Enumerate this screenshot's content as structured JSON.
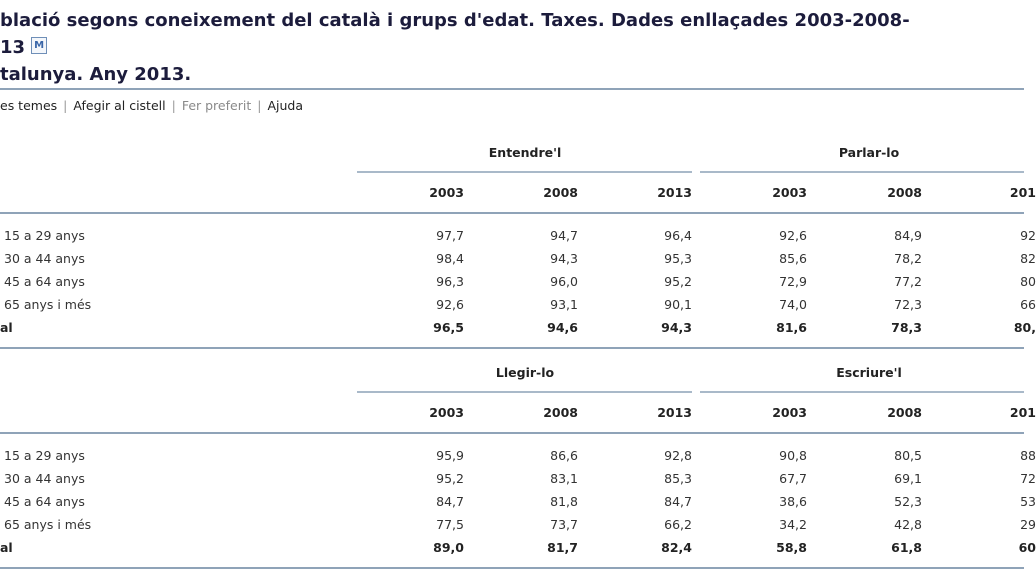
{
  "title": {
    "line1": "blació segons coneixement del català i grups d'edat. Taxes. Dades enllaçades 2003-2008-",
    "line2": "13",
    "line3": "talunya. Any 2013.",
    "metadata_icon": "M"
  },
  "links": [
    {
      "label": "es temes",
      "enabled": true
    },
    {
      "label": "Afegir al cistell",
      "enabled": true
    },
    {
      "label": "Fer preferit",
      "enabled": false
    },
    {
      "label": "Ajuda",
      "enabled": true
    }
  ],
  "row_labels": [
    "15 a 29 anys",
    "30 a 44 anys",
    "45 a 64 anys",
    "65 anys i més",
    "al"
  ],
  "tables": [
    {
      "groups": [
        "Entendre'l",
        "Parlar-lo"
      ],
      "years": [
        "2003",
        "2008",
        "2013",
        "2003",
        "2008",
        "201"
      ],
      "rows": [
        [
          "97,7",
          "94,7",
          "96,4",
          "92,6",
          "84,9",
          "92"
        ],
        [
          "98,4",
          "94,3",
          "95,3",
          "85,6",
          "78,2",
          "82"
        ],
        [
          "96,3",
          "96,0",
          "95,2",
          "72,9",
          "77,2",
          "80"
        ],
        [
          "92,6",
          "93,1",
          "90,1",
          "74,0",
          "72,3",
          "66"
        ],
        [
          "96,5",
          "94,6",
          "94,3",
          "81,6",
          "78,3",
          "80,"
        ]
      ]
    },
    {
      "groups": [
        "Llegir-lo",
        "Escriure'l"
      ],
      "years": [
        "2003",
        "2008",
        "2013",
        "2003",
        "2008",
        "201"
      ],
      "rows": [
        [
          "95,9",
          "86,6",
          "92,8",
          "90,8",
          "80,5",
          "88"
        ],
        [
          "95,2",
          "83,1",
          "85,3",
          "67,7",
          "69,1",
          "72"
        ],
        [
          "84,7",
          "81,8",
          "84,7",
          "38,6",
          "52,3",
          "53"
        ],
        [
          "77,5",
          "73,7",
          "66,2",
          "34,2",
          "42,8",
          "29"
        ],
        [
          "89,0",
          "81,7",
          "82,4",
          "58,8",
          "61,8",
          "60"
        ]
      ]
    }
  ]
}
